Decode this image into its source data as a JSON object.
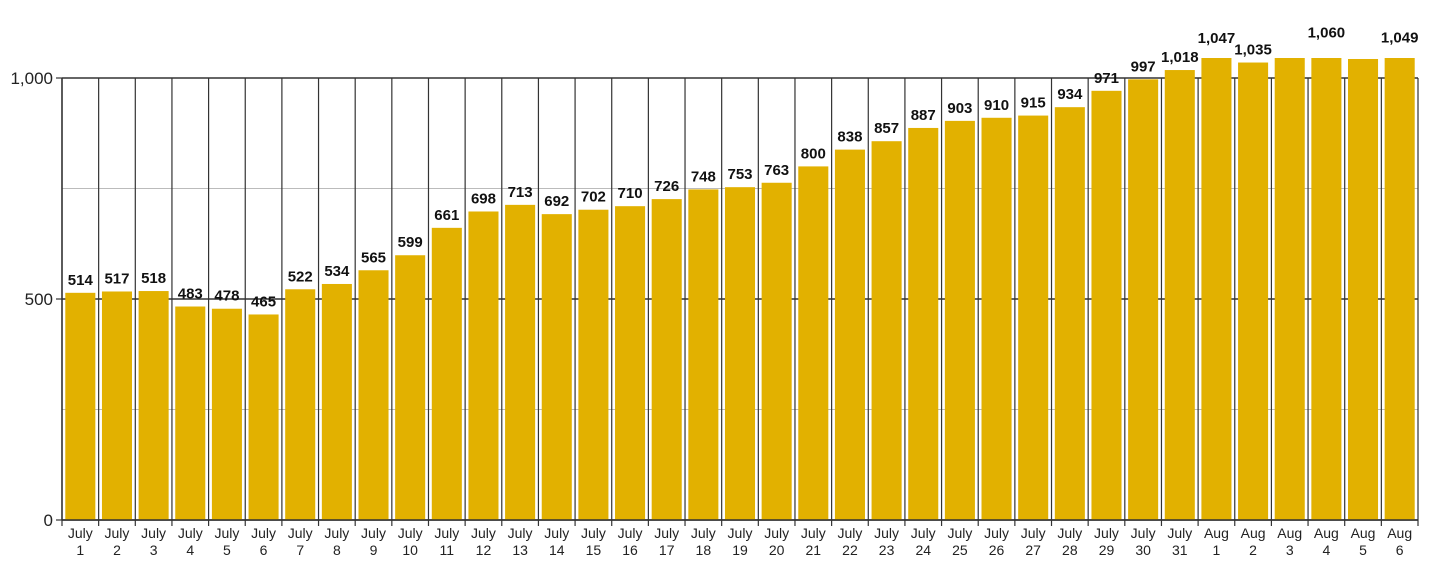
{
  "chart_data": {
    "type": "bar",
    "title": "",
    "xlabel": "",
    "ylabel": "",
    "ylim": [
      0,
      1000
    ],
    "yticks": [
      {
        "value": 0,
        "label": "0"
      },
      {
        "value": 500,
        "label": "500"
      },
      {
        "value": 1000,
        "label": "1,000"
      }
    ],
    "grid": true,
    "bar_color": "#E2B100",
    "categories": [
      [
        "July",
        "1"
      ],
      [
        "July",
        "2"
      ],
      [
        "July",
        "3"
      ],
      [
        "July",
        "4"
      ],
      [
        "July",
        "5"
      ],
      [
        "July",
        "6"
      ],
      [
        "July",
        "7"
      ],
      [
        "July",
        "8"
      ],
      [
        "July",
        "9"
      ],
      [
        "July",
        "10"
      ],
      [
        "July",
        "11"
      ],
      [
        "July",
        "12"
      ],
      [
        "July",
        "13"
      ],
      [
        "July",
        "14"
      ],
      [
        "July",
        "15"
      ],
      [
        "July",
        "16"
      ],
      [
        "July",
        "17"
      ],
      [
        "July",
        "18"
      ],
      [
        "July",
        "19"
      ],
      [
        "July",
        "20"
      ],
      [
        "July",
        "21"
      ],
      [
        "July",
        "22"
      ],
      [
        "July",
        "23"
      ],
      [
        "July",
        "24"
      ],
      [
        "July",
        "25"
      ],
      [
        "July",
        "26"
      ],
      [
        "July",
        "27"
      ],
      [
        "July",
        "28"
      ],
      [
        "July",
        "29"
      ],
      [
        "July",
        "30"
      ],
      [
        "July",
        "31"
      ],
      [
        "Aug",
        "1"
      ],
      [
        "Aug",
        "2"
      ],
      [
        "Aug",
        "3"
      ],
      [
        "Aug",
        "4"
      ],
      [
        "Aug",
        "5"
      ],
      [
        "Aug",
        "6"
      ]
    ],
    "values": [
      514,
      517,
      518,
      483,
      478,
      465,
      522,
      534,
      565,
      599,
      661,
      698,
      713,
      692,
      702,
      710,
      726,
      748,
      753,
      763,
      800,
      838,
      857,
      887,
      903,
      910,
      915,
      934,
      971,
      997,
      1018,
      1047,
      1035,
      1053,
      1060,
      1043,
      1049
    ],
    "value_labels": [
      "514",
      "517",
      "518",
      "483",
      "478",
      "465",
      "522",
      "534",
      "565",
      "599",
      "661",
      "698",
      "713",
      "692",
      "702",
      "710",
      "726",
      "748",
      "753",
      "763",
      "800",
      "838",
      "857",
      "887",
      "903",
      "910",
      "915",
      "934",
      "971",
      "997",
      "1,018",
      "1,047",
      "1,035",
      "",
      "1,060",
      "",
      "1,049"
    ]
  }
}
